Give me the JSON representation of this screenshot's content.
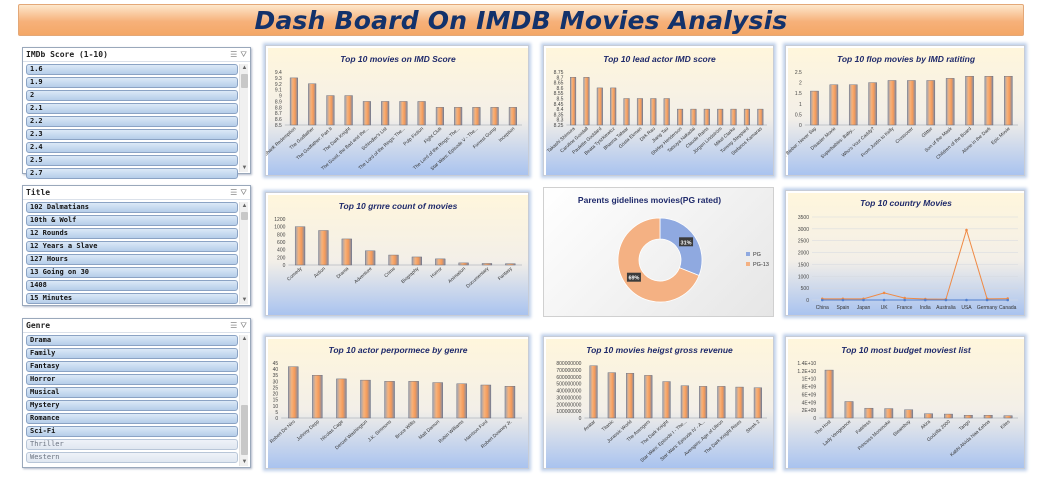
{
  "title": "Dash Board On IMDB Movies Analysis",
  "slicers": [
    {
      "title": "IMDb Score (1-10)",
      "items": [
        "1.6",
        "1.9",
        "2",
        "2.1",
        "2.2",
        "2.3",
        "2.4",
        "2.5",
        "2.7"
      ],
      "dim": []
    },
    {
      "title": "Title",
      "items": [
        "102 Dalmatians",
        "10th & Wolf",
        "12 Rounds",
        "12 Years a Slave",
        "127 Hours",
        "13 Going on 30",
        "1408",
        "15 Minutes"
      ],
      "dim": []
    },
    {
      "title": "Genre",
      "items": [
        "Drama",
        "Family",
        "Fantasy",
        "Horror",
        "Musical",
        "Mystery",
        "Romance",
        "Sci-Fi",
        "Thriller",
        "Western"
      ],
      "dim": [
        8,
        9
      ]
    }
  ],
  "colors": {
    "bar": "#f2a46b",
    "bar_dark": "#6b6e76",
    "line": "#ef8a45",
    "pie_pg": "#8fa9e0",
    "pie_pg13": "#f4b183",
    "title": "#1f2a6b"
  },
  "chart_data": [
    {
      "id": "c1",
      "type": "bar",
      "title": "Top 10 movies on IMD Score",
      "categories": [
        "The Shawshank Redemption",
        "The Godfather",
        "The Godfather: Part II",
        "The Dark Knight",
        "The Good, the Bad and the...",
        "Schindler's List",
        "The Lord of the Rings: The...",
        "Pulp Fiction",
        "Fight Club",
        "The Lord of the Rings: The...",
        "Star Wars: Episode V - The...",
        "Forrest Gump",
        "Inception"
      ],
      "values": [
        9.3,
        9.2,
        9.0,
        9.0,
        8.9,
        8.9,
        8.9,
        8.9,
        8.8,
        8.8,
        8.8,
        8.8,
        8.8
      ],
      "ylim": [
        8.5,
        9.4
      ],
      "yticks": [
        "8.5",
        "8.6",
        "8.7",
        "8.8",
        "8.9",
        "9",
        "9.1",
        "9.2",
        "9.3",
        "9.4"
      ]
    },
    {
      "id": "c2",
      "type": "bar",
      "title": "Top 10 lead actor IMD score",
      "categories": [
        "Takashi Shimura",
        "Caroline Goodall",
        "Paulette Goddard",
        "Beata Tyszkiewicz",
        "Bhavna Talwar",
        "Gösta Ekman",
        "Dirk Rau",
        "Jiang Tao",
        "Shirley Henderson",
        "Tatsuya Nakadai",
        "Claude Rains",
        "Jörgen Lindström",
        "Mikel Clarke",
        "Tommy Steppard",
        "Stefanos Kamaras"
      ],
      "values": [
        8.7,
        8.7,
        8.6,
        8.6,
        8.5,
        8.5,
        8.5,
        8.5,
        8.4,
        8.4,
        8.4,
        8.4,
        8.4,
        8.4,
        8.4
      ],
      "ylim": [
        8.25,
        8.75
      ],
      "yticks": [
        "8.25",
        "8.3",
        "8.35",
        "8.4",
        "8.45",
        "8.5",
        "8.55",
        "8.6",
        "8.65",
        "8.7",
        "8.75"
      ]
    },
    {
      "id": "c3",
      "type": "bar",
      "title": "Top 10 flop movies by IMD ratiting",
      "categories": [
        "Justin Bieber: Never Say",
        "Disaster Movie",
        "Superbabies: Baby...",
        "Who's Your Caddy?",
        "From Justin to Kelly",
        "Crossover",
        "Glitter",
        "Son of the Mask",
        "Children of the Board",
        "Alone in the Dark",
        "Epic Movie"
      ],
      "values": [
        1.6,
        1.9,
        1.9,
        2.0,
        2.1,
        2.1,
        2.1,
        2.2,
        2.3,
        2.3,
        2.3
      ],
      "ylim": [
        0,
        2.5
      ],
      "yticks": [
        "0",
        "0.5",
        "1",
        "1.5",
        "2",
        "2.5"
      ]
    },
    {
      "id": "c4",
      "type": "bar",
      "title": "Top 10 grnre count of movies",
      "categories": [
        "Comedy",
        "Action",
        "Drama",
        "Adventure",
        "Crime",
        "Biography",
        "Horror",
        "Animation",
        "Documentary",
        "Fantasy"
      ],
      "values": [
        1000,
        900,
        680,
        370,
        260,
        210,
        160,
        55,
        40,
        35
      ],
      "ylim": [
        0,
        1200
      ],
      "yticks": [
        "0",
        "200",
        "400",
        "600",
        "800",
        "1000",
        "1200"
      ]
    },
    {
      "id": "c5",
      "type": "pie",
      "title": "Parents gidelines movies(PG rated)",
      "labels": [
        "PG",
        "PG-13"
      ],
      "values": [
        31,
        69
      ],
      "data_labels": [
        "31%",
        "69%"
      ]
    },
    {
      "id": "c6",
      "type": "line",
      "title": "Top 10 country Movies",
      "categories": [
        "China",
        "Spain",
        "Japan",
        "UK",
        "France",
        "India",
        "Australia",
        "USA",
        "Germany",
        "Canada"
      ],
      "series": [
        {
          "values": [
            50,
            50,
            50,
            300,
            80,
            40,
            30,
            2950,
            50,
            60
          ]
        },
        {
          "values": [
            0,
            0,
            0,
            0,
            0,
            0,
            0,
            0,
            0,
            0
          ]
        }
      ],
      "ylim": [
        0,
        3500
      ],
      "yticks": [
        "0",
        "500",
        "1000",
        "1500",
        "2000",
        "2500",
        "3000",
        "3500"
      ]
    },
    {
      "id": "c7",
      "type": "bar",
      "title": "Top 10 actor perpormece by genre",
      "categories": [
        "Robert De Niro",
        "Johnny Depp",
        "Nicolas Cage",
        "Denzel Washington",
        "J.K. Simmons",
        "Bruce Willis",
        "Matt Damon",
        "Robin Williams",
        "Harrison Ford",
        "Robert Downey Jr."
      ],
      "values": [
        42,
        35,
        32,
        31,
        30,
        30,
        29,
        28,
        27,
        26
      ],
      "ylim": [
        0,
        45
      ],
      "yticks": [
        "0",
        "5",
        "10",
        "15",
        "20",
        "25",
        "30",
        "35",
        "40",
        "45"
      ]
    },
    {
      "id": "c8",
      "type": "bar",
      "title": "Top 10 movies heigst gross revenue",
      "categories": [
        "Avatar",
        "Titanic",
        "Jurassic World",
        "The Avengers",
        "The Dark Knight",
        "Star Wars: Episode I - The...",
        "Star Wars: Episode IV - A...",
        "Avengers: Age of Ultron",
        "The Dark Knight Rises",
        "Shrek 2"
      ],
      "values": [
        760000000,
        660000000,
        650000000,
        620000000,
        530000000,
        470000000,
        460000000,
        460000000,
        450000000,
        440000000
      ],
      "ylim": [
        0,
        800000000
      ],
      "yticks": [
        "0",
        "100000000",
        "200000000",
        "300000000",
        "400000000",
        "500000000",
        "600000000",
        "700000000",
        "800000000"
      ]
    },
    {
      "id": "c9",
      "type": "bar",
      "title": "Top 10 most budget moviest list",
      "categories": [
        "The Host",
        "Lady Vengeance",
        "Fateless",
        "Princess Mononoke",
        "Steamboy",
        "Akira",
        "Godzilla 2000",
        "Tango",
        "Kabhi Alvida Naa Kehna",
        "Kites"
      ],
      "values": [
        12200000000,
        4200000000,
        2500000000,
        2400000000,
        2100000000,
        1100000000,
        1000000000,
        700000000,
        700000000,
        600000000
      ],
      "ylim": [
        0,
        14000000000
      ],
      "yticks": [
        "0",
        "2E+09",
        "4E+09",
        "6E+09",
        "8E+09",
        "1E+10",
        "1.2E+10",
        "1.4E+10"
      ]
    }
  ]
}
